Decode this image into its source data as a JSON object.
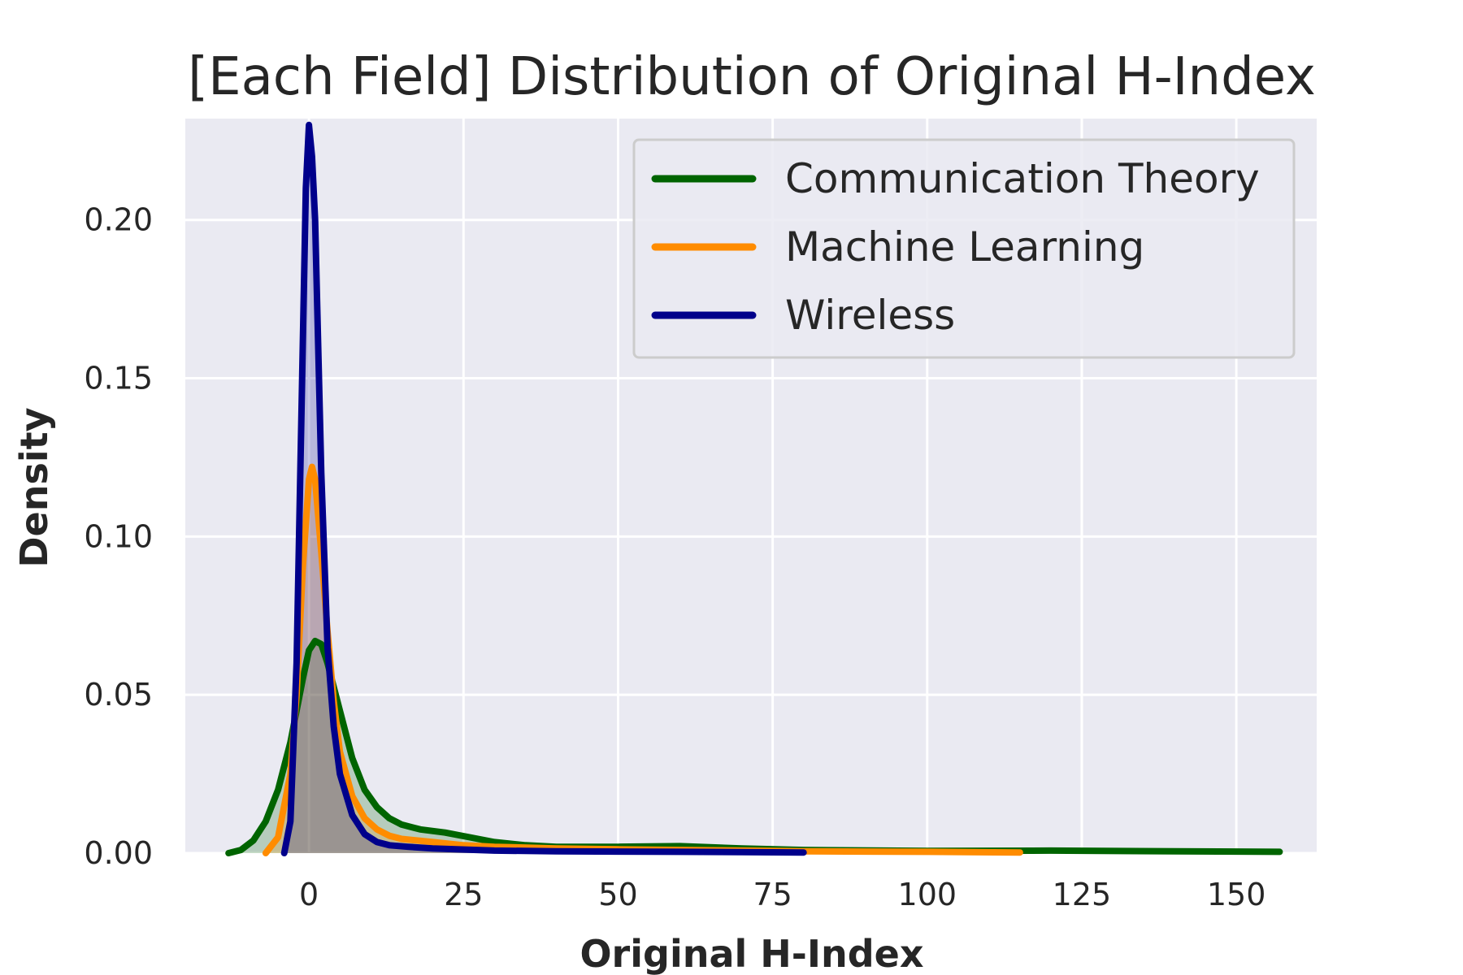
{
  "chart_data": {
    "type": "area",
    "title": "[Each Field] Distribution of Original H-Index",
    "xlabel": "Original H-Index",
    "ylabel": "Density",
    "xlim": [
      -20,
      163
    ],
    "ylim": [
      0,
      0.232
    ],
    "x_ticks": [
      0,
      25,
      50,
      75,
      100,
      125,
      150
    ],
    "x_tick_labels": [
      "0",
      "25",
      "50",
      "75",
      "100",
      "125",
      "150"
    ],
    "y_ticks": [
      0.0,
      0.05,
      0.1,
      0.15,
      0.2
    ],
    "y_tick_labels": [
      "0.00",
      "0.05",
      "0.10",
      "0.15",
      "0.20"
    ],
    "grid": true,
    "legend_position": "top-right",
    "colors": {
      "background": "#eaeaf2",
      "grid": "#ffffff",
      "fill": "#a09090"
    },
    "series": [
      {
        "name": "Communication Theory",
        "color": "#006400",
        "x": [
          -13,
          -11,
          -9,
          -7,
          -5,
          -3,
          -1,
          0,
          1,
          2,
          3,
          5,
          7,
          9,
          11,
          13,
          15,
          18,
          22,
          26,
          30,
          35,
          40,
          50,
          60,
          70,
          80,
          100,
          120,
          140,
          157
        ],
        "y": [
          0.0,
          0.001,
          0.004,
          0.01,
          0.02,
          0.035,
          0.055,
          0.064,
          0.067,
          0.066,
          0.06,
          0.045,
          0.03,
          0.02,
          0.0145,
          0.011,
          0.009,
          0.0075,
          0.0065,
          0.005,
          0.0035,
          0.0025,
          0.002,
          0.002,
          0.0022,
          0.0015,
          0.001,
          0.0007,
          0.0008,
          0.0006,
          0.0004
        ]
      },
      {
        "name": "Machine Learning",
        "color": "#ff8c00",
        "x": [
          -7,
          -5,
          -3,
          -2,
          -1,
          0,
          0.5,
          1,
          2,
          3,
          4,
          5,
          7,
          9,
          11,
          13,
          15,
          20,
          25,
          30,
          40,
          50,
          60,
          70,
          80,
          90,
          100,
          115
        ],
        "y": [
          0.0,
          0.005,
          0.025,
          0.05,
          0.09,
          0.118,
          0.122,
          0.118,
          0.095,
          0.07,
          0.048,
          0.032,
          0.018,
          0.011,
          0.0075,
          0.0055,
          0.0045,
          0.0035,
          0.0025,
          0.002,
          0.0015,
          0.0012,
          0.001,
          0.0008,
          0.0006,
          0.0005,
          0.0004,
          0.0002
        ]
      },
      {
        "name": "Wireless",
        "color": "#00008b",
        "x": [
          -4,
          -3,
          -2,
          -1,
          -0.5,
          0,
          0.5,
          1,
          1.5,
          2,
          3,
          4,
          5,
          7,
          9,
          11,
          13,
          16,
          20,
          30,
          40,
          50,
          60,
          70,
          80
        ],
        "y": [
          0.0,
          0.01,
          0.06,
          0.16,
          0.21,
          0.23,
          0.22,
          0.2,
          0.16,
          0.12,
          0.065,
          0.04,
          0.025,
          0.012,
          0.006,
          0.0035,
          0.0025,
          0.002,
          0.0015,
          0.0008,
          0.0006,
          0.0005,
          0.0004,
          0.0003,
          0.0002
        ]
      }
    ]
  }
}
